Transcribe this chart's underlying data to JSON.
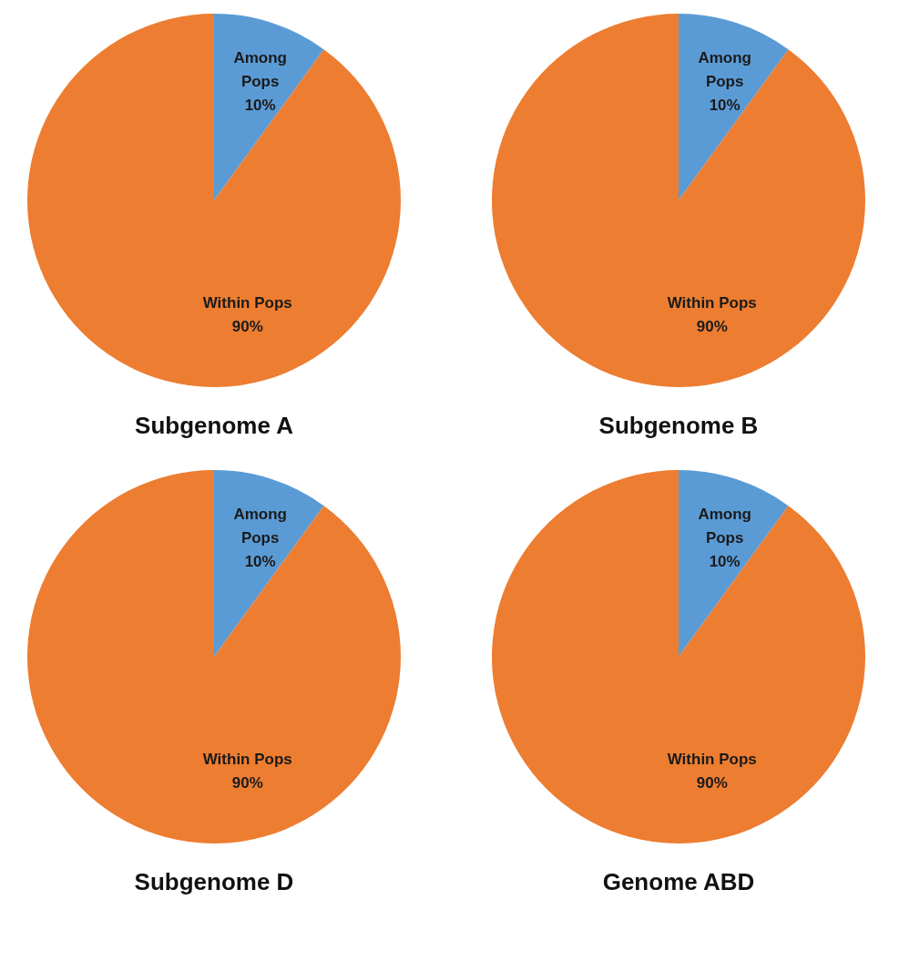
{
  "chart_data": [
    {
      "type": "pie",
      "title": "Subgenome A",
      "categories": [
        "Among Pops",
        "Within Pops"
      ],
      "values": [
        10,
        90
      ],
      "colors": [
        "#5b9bd5",
        "#ed7d31"
      ],
      "value_labels": [
        "10%",
        "90%"
      ],
      "legend": false
    },
    {
      "type": "pie",
      "title": "Subgenome B",
      "categories": [
        "Among Pops",
        "Within Pops"
      ],
      "values": [
        10,
        90
      ],
      "colors": [
        "#5b9bd5",
        "#ed7d31"
      ],
      "value_labels": [
        "10%",
        "90%"
      ],
      "legend": false
    },
    {
      "type": "pie",
      "title": "Subgenome D",
      "categories": [
        "Among Pops",
        "Within Pops"
      ],
      "values": [
        10,
        90
      ],
      "colors": [
        "#5b9bd5",
        "#ed7d31"
      ],
      "value_labels": [
        "10%",
        "90%"
      ],
      "legend": false
    },
    {
      "type": "pie",
      "title": "Genome ABD",
      "categories": [
        "Among Pops",
        "Within Pops"
      ],
      "values": [
        10,
        90
      ],
      "colors": [
        "#5b9bd5",
        "#ed7d31"
      ],
      "value_labels": [
        "10%",
        "90%"
      ],
      "legend": false
    }
  ]
}
